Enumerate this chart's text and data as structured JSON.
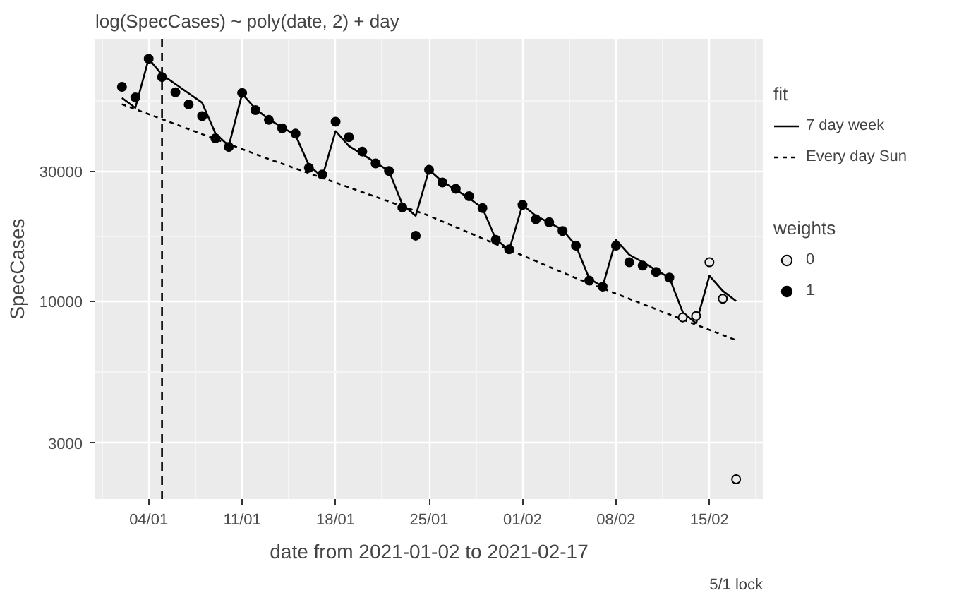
{
  "chart_data": {
    "type": "scatter",
    "title": "log(SpecCases) ~ poly(date, 2) + day",
    "xlabel": "date from 2021-01-02 to 2021-02-17",
    "ylabel": "SpecCases",
    "legend_title": [
      "fit",
      "weights"
    ],
    "annotations": [
      "5/1 lock"
    ],
    "log": true,
    "grid": true,
    "legend": "right",
    "xlim": [
      "2020-12-31",
      "2021-02-19"
    ],
    "ylim": [
      1870,
      92200
    ],
    "xticks": [
      {
        "value": "2021-01-04",
        "label": "04/01"
      },
      {
        "value": "2021-01-11",
        "label": "11/01"
      },
      {
        "value": "2021-01-18",
        "label": "18/01"
      },
      {
        "value": "2021-01-25",
        "label": "25/01"
      },
      {
        "value": "2021-02-01",
        "label": "01/02"
      },
      {
        "value": "2021-02-08",
        "label": "08/02"
      },
      {
        "value": "2021-02-15",
        "label": "15/02"
      }
    ],
    "yticks": [
      3000,
      10000,
      30000
    ],
    "ref_lines": [
      {
        "axis": "x",
        "value": "2021-01-05",
        "line_style": "dashed",
        "color": "#000000"
      }
    ],
    "series": [
      {
        "name": "7 day week",
        "type": "line",
        "line_style": "solid",
        "color": "#000000",
        "x": [
          "2021-01-02",
          "2021-01-03",
          "2021-01-04",
          "2021-01-05",
          "2021-01-06",
          "2021-01-07",
          "2021-01-08",
          "2021-01-09",
          "2021-01-10",
          "2021-01-11",
          "2021-01-12",
          "2021-01-13",
          "2021-01-14",
          "2021-01-15",
          "2021-01-16",
          "2021-01-17",
          "2021-01-18",
          "2021-01-19",
          "2021-01-20",
          "2021-01-21",
          "2021-01-22",
          "2021-01-23",
          "2021-01-24",
          "2021-01-25",
          "2021-01-26",
          "2021-01-27",
          "2021-01-28",
          "2021-01-29",
          "2021-01-30",
          "2021-01-31",
          "2021-02-01",
          "2021-02-02",
          "2021-02-03",
          "2021-02-04",
          "2021-02-05",
          "2021-02-06",
          "2021-02-07",
          "2021-02-08",
          "2021-02-09",
          "2021-02-10",
          "2021-02-11",
          "2021-02-12",
          "2021-02-13",
          "2021-02-14",
          "2021-02-15",
          "2021-02-16",
          "2021-02-17"
        ],
        "values": [
          55900,
          51400,
          77800,
          68000,
          62900,
          58100,
          53700,
          41400,
          37200,
          57900,
          51000,
          46600,
          43600,
          40800,
          31600,
          28600,
          42200,
          37200,
          34700,
          32300,
          30100,
          22700,
          20600,
          30400,
          27500,
          25700,
          23900,
          22000,
          16900,
          15400,
          22600,
          20600,
          19400,
          18300,
          16000,
          12100,
          11300,
          16800,
          14800,
          13900,
          13000,
          12200,
          9100,
          8280,
          12400,
          10900,
          10000
        ]
      },
      {
        "name": "Every day Sun",
        "type": "line",
        "line_style": "dotted",
        "color": "#000000",
        "x": [
          "2021-01-02",
          "2021-01-13",
          "2021-01-25",
          "2021-02-05",
          "2021-02-17"
        ],
        "values": [
          53000,
          33300,
          20600,
          12150,
          7180
        ]
      },
      {
        "name": "0",
        "marker": "circle",
        "color": "#ebebeb",
        "x": [
          "2021-02-13",
          "2021-02-14",
          "2021-02-15",
          "2021-02-16",
          "2021-02-17"
        ],
        "values": [
          8710,
          8810,
          13900,
          10200,
          2210
        ]
      },
      {
        "name": "1",
        "marker": "circle",
        "color": "#000000",
        "x": [
          "2021-01-02",
          "2021-01-03",
          "2021-01-04",
          "2021-01-05",
          "2021-01-06",
          "2021-01-07",
          "2021-01-08",
          "2021-01-09",
          "2021-01-10",
          "2021-01-11",
          "2021-01-12",
          "2021-01-13",
          "2021-01-14",
          "2021-01-15",
          "2021-01-16",
          "2021-01-17",
          "2021-01-18",
          "2021-01-19",
          "2021-01-20",
          "2021-01-21",
          "2021-01-22",
          "2021-01-23",
          "2021-01-24",
          "2021-01-25",
          "2021-01-26",
          "2021-01-27",
          "2021-01-28",
          "2021-01-29",
          "2021-01-30",
          "2021-01-31",
          "2021-02-01",
          "2021-02-02",
          "2021-02-03",
          "2021-02-04",
          "2021-02-05",
          "2021-02-06",
          "2021-02-07",
          "2021-02-08",
          "2021-02-09",
          "2021-02-10",
          "2021-02-11",
          "2021-02-12"
        ],
        "values": [
          61400,
          56100,
          77800,
          66700,
          58600,
          52900,
          47900,
          39700,
          36900,
          58300,
          50400,
          46400,
          43200,
          41300,
          30900,
          29200,
          45700,
          40100,
          35500,
          32100,
          30100,
          22100,
          17400,
          30400,
          27300,
          25900,
          24300,
          22000,
          16800,
          15500,
          22600,
          20000,
          19500,
          18100,
          16000,
          11900,
          11300,
          16000,
          13900,
          13500,
          12800,
          12200
        ]
      }
    ]
  }
}
